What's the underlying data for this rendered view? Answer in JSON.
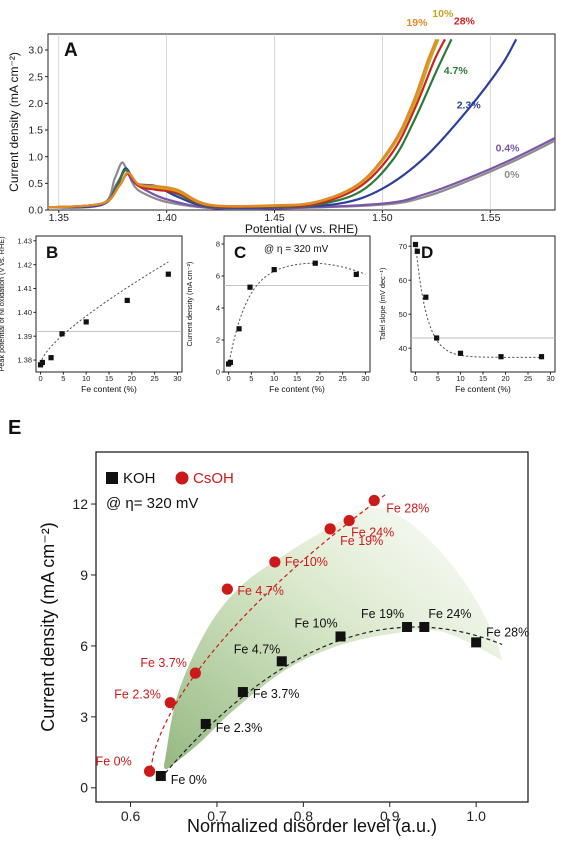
{
  "chart_data": [
    {
      "id": "A",
      "type": "line",
      "panel_label": "A",
      "xlabel": "Potential (V vs. RHE)",
      "ylabel": "Current density (mA cm⁻²)",
      "xlim": [
        1.345,
        1.58
      ],
      "ylim": [
        0,
        3.3
      ],
      "xticks": [
        1.35,
        1.4,
        1.45,
        1.5,
        1.55
      ],
      "xtick_labels": [
        "1.35",
        "1.40",
        "1.45",
        "1.50",
        "1.55"
      ],
      "yticks": [
        0.0,
        0.5,
        1.0,
        1.5,
        2.0,
        2.5,
        3.0
      ],
      "ytick_labels": [
        "0.0",
        "0.5",
        "1.0",
        "1.5",
        "2.0",
        "2.5",
        "3.0"
      ],
      "grid": "vertical",
      "series": [
        {
          "name": "0%",
          "color": "#8c8c8c",
          "points": [
            [
              1.345,
              0.05
            ],
            [
              1.37,
              0.1
            ],
            [
              1.376,
              0.6
            ],
            [
              1.379,
              0.88
            ],
            [
              1.381,
              0.8
            ],
            [
              1.385,
              0.45
            ],
            [
              1.39,
              0.3
            ],
            [
              1.4,
              0.15
            ],
            [
              1.42,
              0.04
            ],
            [
              1.45,
              0.03
            ],
            [
              1.5,
              0.1
            ],
            [
              1.52,
              0.25
            ],
            [
              1.54,
              0.55
            ],
            [
              1.56,
              0.9
            ],
            [
              1.58,
              1.3
            ]
          ]
        },
        {
          "name": "0.4%",
          "color": "#7a55aa",
          "points": [
            [
              1.345,
              0.05
            ],
            [
              1.37,
              0.1
            ],
            [
              1.377,
              0.5
            ],
            [
              1.381,
              0.75
            ],
            [
              1.384,
              0.55
            ],
            [
              1.39,
              0.38
            ],
            [
              1.4,
              0.2
            ],
            [
              1.42,
              0.04
            ],
            [
              1.45,
              0.03
            ],
            [
              1.5,
              0.12
            ],
            [
              1.52,
              0.3
            ],
            [
              1.54,
              0.6
            ],
            [
              1.56,
              0.95
            ],
            [
              1.58,
              1.35
            ]
          ]
        },
        {
          "name": "2.3%",
          "color": "#2e3f9b",
          "points": [
            [
              1.345,
              0.05
            ],
            [
              1.37,
              0.1
            ],
            [
              1.377,
              0.45
            ],
            [
              1.381,
              0.78
            ],
            [
              1.386,
              0.5
            ],
            [
              1.395,
              0.45
            ],
            [
              1.405,
              0.25
            ],
            [
              1.42,
              0.06
            ],
            [
              1.45,
              0.05
            ],
            [
              1.48,
              0.12
            ],
            [
              1.5,
              0.4
            ],
            [
              1.52,
              1.0
            ],
            [
              1.54,
              1.9
            ],
            [
              1.555,
              2.7
            ],
            [
              1.562,
              3.2
            ]
          ]
        },
        {
          "name": "4.7%",
          "color": "#2a7a3a",
          "points": [
            [
              1.345,
              0.05
            ],
            [
              1.37,
              0.12
            ],
            [
              1.377,
              0.45
            ],
            [
              1.381,
              0.75
            ],
            [
              1.386,
              0.5
            ],
            [
              1.395,
              0.42
            ],
            [
              1.405,
              0.3
            ],
            [
              1.42,
              0.07
            ],
            [
              1.45,
              0.06
            ],
            [
              1.47,
              0.1
            ],
            [
              1.49,
              0.35
            ],
            [
              1.505,
              0.95
            ],
            [
              1.515,
              1.7
            ],
            [
              1.525,
              2.6
            ],
            [
              1.532,
              3.2
            ]
          ]
        },
        {
          "name": "28%",
          "color": "#cc2222",
          "points": [
            [
              1.345,
              0.05
            ],
            [
              1.37,
              0.12
            ],
            [
              1.378,
              0.45
            ],
            [
              1.382,
              0.68
            ],
            [
              1.387,
              0.45
            ],
            [
              1.395,
              0.38
            ],
            [
              1.405,
              0.32
            ],
            [
              1.42,
              0.08
            ],
            [
              1.45,
              0.07
            ],
            [
              1.47,
              0.12
            ],
            [
              1.49,
              0.45
            ],
            [
              1.505,
              1.1
            ],
            [
              1.515,
              1.9
            ],
            [
              1.524,
              2.8
            ],
            [
              1.529,
              3.2
            ]
          ]
        },
        {
          "name": "10%",
          "color": "#c8a61e",
          "points": [
            [
              1.345,
              0.05
            ],
            [
              1.37,
              0.12
            ],
            [
              1.378,
              0.45
            ],
            [
              1.382,
              0.7
            ],
            [
              1.387,
              0.48
            ],
            [
              1.395,
              0.42
            ],
            [
              1.405,
              0.35
            ],
            [
              1.42,
              0.09
            ],
            [
              1.45,
              0.08
            ],
            [
              1.47,
              0.15
            ],
            [
              1.49,
              0.5
            ],
            [
              1.505,
              1.2
            ],
            [
              1.515,
              2.0
            ],
            [
              1.522,
              2.8
            ],
            [
              1.526,
              3.2
            ]
          ]
        },
        {
          "name": "19%",
          "color": "#e08a2a",
          "points": [
            [
              1.345,
              0.05
            ],
            [
              1.37,
              0.12
            ],
            [
              1.378,
              0.45
            ],
            [
              1.382,
              0.7
            ],
            [
              1.387,
              0.48
            ],
            [
              1.395,
              0.45
            ],
            [
              1.405,
              0.38
            ],
            [
              1.42,
              0.1
            ],
            [
              1.45,
              0.09
            ],
            [
              1.47,
              0.16
            ],
            [
              1.49,
              0.52
            ],
            [
              1.505,
              1.25
            ],
            [
              1.514,
              2.0
            ],
            [
              1.521,
              2.8
            ],
            [
              1.525,
              3.2
            ]
          ]
        }
      ],
      "curve_labels": [
        {
          "text": "19%",
          "color": "#e08a2a",
          "x": 1.516,
          "y": 3.45
        },
        {
          "text": "10%",
          "color": "#c8a61e",
          "x": 1.528,
          "y": 3.62
        },
        {
          "text": "28%",
          "color": "#cc2222",
          "x": 1.538,
          "y": 3.48
        },
        {
          "text": "4.7%",
          "color": "#2a7a3a",
          "x": 1.534,
          "y": 2.55
        },
        {
          "text": "2.3%",
          "color": "#2e3f9b",
          "x": 1.54,
          "y": 1.9
        },
        {
          "text": "0.4%",
          "color": "#7a55aa",
          "x": 1.558,
          "y": 1.1
        },
        {
          "text": "0%",
          "color": "#8c8c8c",
          "x": 1.56,
          "y": 0.6
        }
      ]
    },
    {
      "id": "B",
      "type": "scatter",
      "panel_label": "B",
      "xlabel": "Fe content (%)",
      "ylabel": "Peak potential of Ni oxidation (V vs. RHE)",
      "xlim": [
        -1,
        31
      ],
      "ylim": [
        1.375,
        1.432
      ],
      "xticks": [
        0,
        5,
        10,
        15,
        20,
        25,
        30
      ],
      "xtick_labels": [
        "0",
        "5",
        "10",
        "15",
        "20",
        "25",
        "30"
      ],
      "yticks": [
        1.38,
        1.39,
        1.4,
        1.41,
        1.42,
        1.43
      ],
      "ytick_labels": [
        "1.38",
        "1.39",
        "1.40",
        "1.41",
        "1.42",
        "1.43"
      ],
      "reference_y": 1.392,
      "x": [
        0,
        0.4,
        2.3,
        4.7,
        10,
        19,
        28
      ],
      "y": [
        1.378,
        1.379,
        1.381,
        1.391,
        1.396,
        1.405,
        1.416
      ]
    },
    {
      "id": "C",
      "type": "scatter",
      "panel_label": "C",
      "annotation": "@ η = 320 mV",
      "xlabel": "Fe content (%)",
      "ylabel": "Current density (mA cm⁻²)",
      "xlim": [
        -1,
        31
      ],
      "ylim": [
        0,
        8.5
      ],
      "xticks": [
        0,
        5,
        10,
        15,
        20,
        25,
        30
      ],
      "xtick_labels": [
        "0",
        "5",
        "10",
        "15",
        "20",
        "25",
        "30"
      ],
      "yticks": [
        0,
        2,
        4,
        6,
        8
      ],
      "ytick_labels": [
        "0",
        "2",
        "4",
        "6",
        "8"
      ],
      "reference_y": 5.4,
      "x": [
        0,
        0.4,
        2.3,
        4.7,
        10,
        19,
        28
      ],
      "y": [
        0.5,
        0.6,
        2.7,
        5.3,
        6.4,
        6.8,
        6.1
      ]
    },
    {
      "id": "D",
      "type": "scatter",
      "panel_label": "D",
      "xlabel": "Fe content (%)",
      "ylabel": "Tafel slope (mV dec⁻¹)",
      "xlim": [
        -1,
        31
      ],
      "ylim": [
        33,
        73
      ],
      "xticks": [
        0,
        5,
        10,
        15,
        20,
        25,
        30
      ],
      "xtick_labels": [
        "0",
        "5",
        "10",
        "15",
        "20",
        "25",
        "30"
      ],
      "yticks": [
        40,
        50,
        60,
        70
      ],
      "ytick_labels": [
        "40",
        "50",
        "60",
        "70"
      ],
      "reference_y": 43,
      "x": [
        0,
        0.4,
        2.3,
        4.7,
        10,
        19,
        28
      ],
      "y": [
        70.5,
        68.5,
        55,
        43,
        38.5,
        37.5,
        37.5
      ]
    },
    {
      "id": "E",
      "type": "scatter",
      "panel_label": "E",
      "annotation": "@ η= 320 mV",
      "xlabel": "Normalized disorder level (a.u.)",
      "ylabel": "Current density (mA cm⁻²)",
      "xlim": [
        0.56,
        1.06
      ],
      "ylim": [
        -0.6,
        14.2
      ],
      "xticks": [
        0.6,
        0.7,
        0.8,
        0.9,
        1.0
      ],
      "xtick_labels": [
        "0.6",
        "0.7",
        "0.8",
        "0.9",
        "1.0"
      ],
      "yticks": [
        0,
        3,
        6,
        9,
        12
      ],
      "ytick_labels": [
        "0",
        "3",
        "6",
        "9",
        "12"
      ],
      "legend": [
        {
          "text": "KOH",
          "marker": "square",
          "color": "#111111"
        },
        {
          "text": "CsOH",
          "marker": "circle",
          "color": "#cc1a1a"
        }
      ],
      "series": [
        {
          "name": "KOH",
          "color": "#111111",
          "marker": "square",
          "x": [
            0.635,
            0.687,
            0.73,
            0.775,
            0.843,
            0.92,
            0.94,
            1.0
          ],
          "y": [
            0.5,
            2.7,
            4.05,
            5.35,
            6.4,
            6.8,
            6.8,
            6.15
          ],
          "labels": [
            "Fe 0%",
            "Fe 2.3%",
            "Fe 3.7%",
            "Fe 4.7%",
            "Fe 10%",
            "Fe 19%",
            "Fe 24%",
            "Fe 28%"
          ]
        },
        {
          "name": "CsOH",
          "color": "#cc1a1a",
          "marker": "circle",
          "x": [
            0.622,
            0.646,
            0.675,
            0.712,
            0.767,
            0.831,
            0.853,
            0.882
          ],
          "y": [
            0.7,
            3.6,
            4.85,
            8.4,
            9.55,
            10.95,
            11.3,
            12.15
          ],
          "labels": [
            "Fe 0%",
            "Fe 2.3%",
            "Fe 3.7%",
            "Fe 4.7%",
            "Fe 10%",
            "Fe 19%",
            "Fe 24%",
            "Fe 28%"
          ]
        }
      ]
    }
  ]
}
